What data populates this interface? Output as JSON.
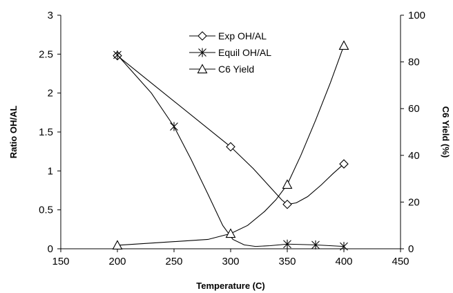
{
  "chart_data": {
    "type": "line",
    "xlabel": "Temperature (C)",
    "ylabel": "Ratio OH/AL",
    "y2label": "C6 Yield (%)",
    "xlim": [
      150,
      450
    ],
    "ylim": [
      0,
      3
    ],
    "y2lim": [
      0,
      100
    ],
    "x_ticks": [
      150,
      200,
      250,
      300,
      350,
      400,
      450
    ],
    "y_ticks": [
      0,
      0.5,
      1,
      1.5,
      2,
      2.5,
      3
    ],
    "y2_ticks": [
      0,
      20,
      40,
      60,
      80,
      100
    ],
    "legend_position": "top-center",
    "grid": false,
    "series": [
      {
        "name": "Exp OH/AL",
        "axis": "left",
        "marker": "diamond",
        "points": [
          [
            200,
            2.48
          ],
          [
            300,
            1.31
          ],
          [
            350,
            0.57
          ],
          [
            400,
            1.09
          ]
        ],
        "curve": [
          [
            200,
            2.48
          ],
          [
            300,
            1.31
          ],
          [
            320,
            1.03
          ],
          [
            335,
            0.79
          ],
          [
            345,
            0.63
          ],
          [
            350,
            0.57
          ],
          [
            358,
            0.59
          ],
          [
            368,
            0.67
          ],
          [
            380,
            0.82
          ],
          [
            390,
            0.96
          ],
          [
            400,
            1.09
          ]
        ]
      },
      {
        "name": "Equil OH/AL",
        "axis": "left",
        "marker": "star",
        "points": [
          [
            200,
            2.49
          ],
          [
            250,
            1.57
          ],
          [
            350,
            0.06
          ],
          [
            375,
            0.05
          ],
          [
            400,
            0.03
          ]
        ],
        "curve": [
          [
            200,
            2.49
          ],
          [
            230,
            2.0
          ],
          [
            250,
            1.57
          ],
          [
            265,
            1.15
          ],
          [
            280,
            0.7
          ],
          [
            293,
            0.3
          ],
          [
            302,
            0.12
          ],
          [
            312,
            0.05
          ],
          [
            322,
            0.03
          ],
          [
            335,
            0.04
          ],
          [
            350,
            0.06
          ],
          [
            375,
            0.05
          ],
          [
            400,
            0.03
          ]
        ]
      },
      {
        "name": "C6 Yield",
        "axis": "right",
        "marker": "triangle",
        "points": [
          [
            200,
            1.5
          ],
          [
            300,
            6.5
          ],
          [
            350,
            27.5
          ],
          [
            400,
            87
          ]
        ],
        "curve": [
          [
            200,
            1.5
          ],
          [
            280,
            4.0
          ],
          [
            300,
            6.5
          ],
          [
            315,
            10
          ],
          [
            330,
            16
          ],
          [
            340,
            21
          ],
          [
            350,
            27.5
          ],
          [
            362,
            40
          ],
          [
            375,
            55
          ],
          [
            388,
            71
          ],
          [
            400,
            87
          ]
        ]
      }
    ]
  }
}
